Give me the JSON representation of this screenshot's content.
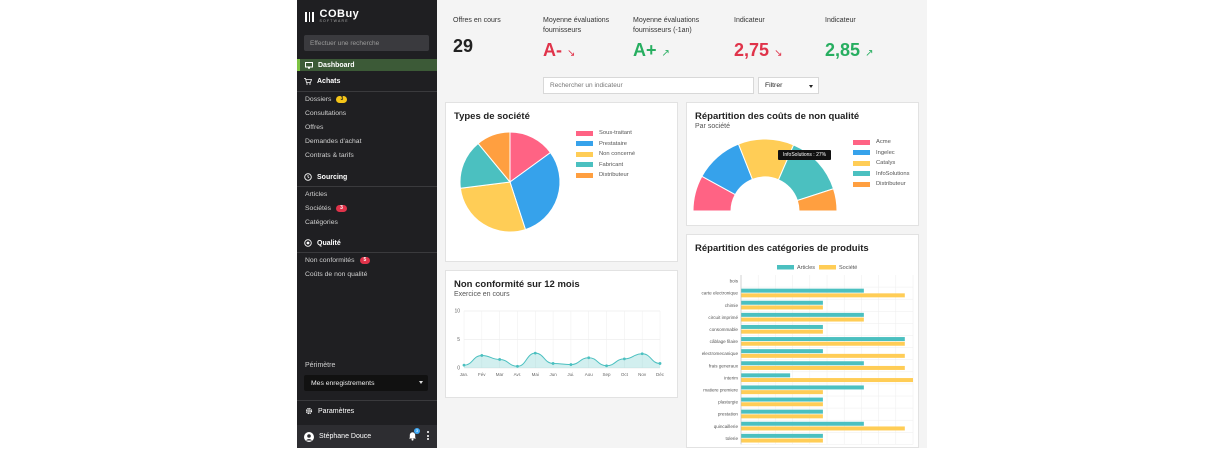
{
  "app": {
    "logo_text": "COBuy",
    "logo_sub": "SOFTWARE"
  },
  "sidebar": {
    "search_placeholder": "Effectuer une recherche",
    "dashboard_label": "Dashboard",
    "achats": {
      "label": "Achats",
      "items": [
        {
          "label": "Dossiers",
          "badge": "3",
          "badge_color": "#f5c518"
        },
        {
          "label": "Consultations"
        },
        {
          "label": "Offres"
        },
        {
          "label": "Demandes d'achat"
        },
        {
          "label": "Contrats & tarifs"
        }
      ]
    },
    "sourcing": {
      "label": "Sourcing",
      "items": [
        {
          "label": "Articles"
        },
        {
          "label": "Sociétés",
          "badge": "3",
          "badge_color": "#e0334a"
        },
        {
          "label": "Catégories"
        }
      ]
    },
    "qualite": {
      "label": "Qualité",
      "items": [
        {
          "label": "Non conformités",
          "badge": "5",
          "badge_color": "#e0334a"
        },
        {
          "label": "Coûts de non qualité"
        }
      ]
    },
    "perimetre_label": "Périmètre",
    "perimetre_value": "Mes enregistrements",
    "params_label": "Paramètres",
    "user_name": "Stéphane Douce",
    "notif_count": "3"
  },
  "kpis": [
    {
      "label": "Offres en cours",
      "value": "29",
      "color": "#222222",
      "trend": ""
    },
    {
      "label": "Moyenne évaluations fournisseurs",
      "value": "A-",
      "color": "#e0334a",
      "trend": "↘"
    },
    {
      "label": "Moyenne évaluations fournisseurs (-1an)",
      "value": "A+",
      "color": "#27ae60",
      "trend": "↗"
    },
    {
      "label": "Indicateur",
      "value": "2,75",
      "color": "#e0334a",
      "trend": "↘"
    },
    {
      "label": "Indicateur",
      "value": "2,85",
      "color": "#27ae60",
      "trend": "↗"
    }
  ],
  "toolbar": {
    "search_placeholder": "Rechercher un indicateur",
    "filter_label": "Filtrer"
  },
  "cards": {
    "types": {
      "title": "Types de société"
    },
    "repartition_couts": {
      "title": "Répartition des coûts de non qualité",
      "subtitle": "Par société",
      "tooltip": "InfoSolutions : 27%"
    },
    "non_conformite": {
      "title": "Non conformité sur 12 mois",
      "subtitle": "Exercice en cours"
    },
    "categories": {
      "title": "Répartition des catégories de produits"
    }
  },
  "chart_data": [
    {
      "type": "pie",
      "title": "Types de société",
      "labels": [
        "Sous-traitant",
        "Prestataire",
        "Non concerné",
        "Fabricant",
        "Distributeur"
      ],
      "values": [
        15,
        30,
        28,
        16,
        11
      ],
      "colors": [
        "#ff6384",
        "#36a2eb",
        "#ffcd56",
        "#4bc0c0",
        "#ff9f40"
      ]
    },
    {
      "type": "pie",
      "subtype": "half-doughnut",
      "title": "Répartition des coûts de non qualité",
      "labels": [
        "Acme",
        "Ingelec",
        "Catalys",
        "InfoSolutions",
        "Distributeur"
      ],
      "values": [
        16,
        22,
        25,
        27,
        10
      ],
      "colors": [
        "#ff6384",
        "#36a2eb",
        "#ffcd56",
        "#4bc0c0",
        "#ff9f40"
      ]
    },
    {
      "type": "area",
      "title": "Non conformité sur 12 mois",
      "categories": [
        "Jan.",
        "Fév",
        "Mar",
        "Avr.",
        "Mai",
        "Jun",
        "Jui.",
        "Aou",
        "Sep",
        "Oct",
        "Nov",
        "Déc"
      ],
      "values": [
        0.5,
        2.2,
        1.5,
        0.3,
        2.6,
        0.8,
        0.6,
        1.8,
        0.4,
        1.6,
        2.5,
        0.8
      ],
      "ylim": [
        0,
        10
      ],
      "yticks": [
        "0",
        "5",
        "10"
      ],
      "color": "#4bc0c0"
    },
    {
      "type": "bar",
      "orientation": "horizontal",
      "title": "Répartition des catégories de produits",
      "categories": [
        "bois",
        "carte electronique",
        "chimie",
        "circuit imprimé",
        "consommable",
        "câblage filaire",
        "electromecanique",
        "frais generaux",
        "interim",
        "matiere premiere",
        "plasturgie",
        "prestation",
        "quincaillerie",
        "tolerie"
      ],
      "series": [
        {
          "name": "Articles",
          "color": "#4bc0c0",
          "values": [
            0,
            75,
            50,
            75,
            50,
            100,
            50,
            75,
            30,
            75,
            50,
            50,
            75,
            50
          ]
        },
        {
          "name": "Société",
          "color": "#ffcd56",
          "values": [
            0,
            100,
            50,
            75,
            50,
            100,
            100,
            100,
            105,
            50,
            50,
            50,
            100,
            50
          ]
        }
      ],
      "xlim": [
        0,
        105
      ]
    }
  ]
}
